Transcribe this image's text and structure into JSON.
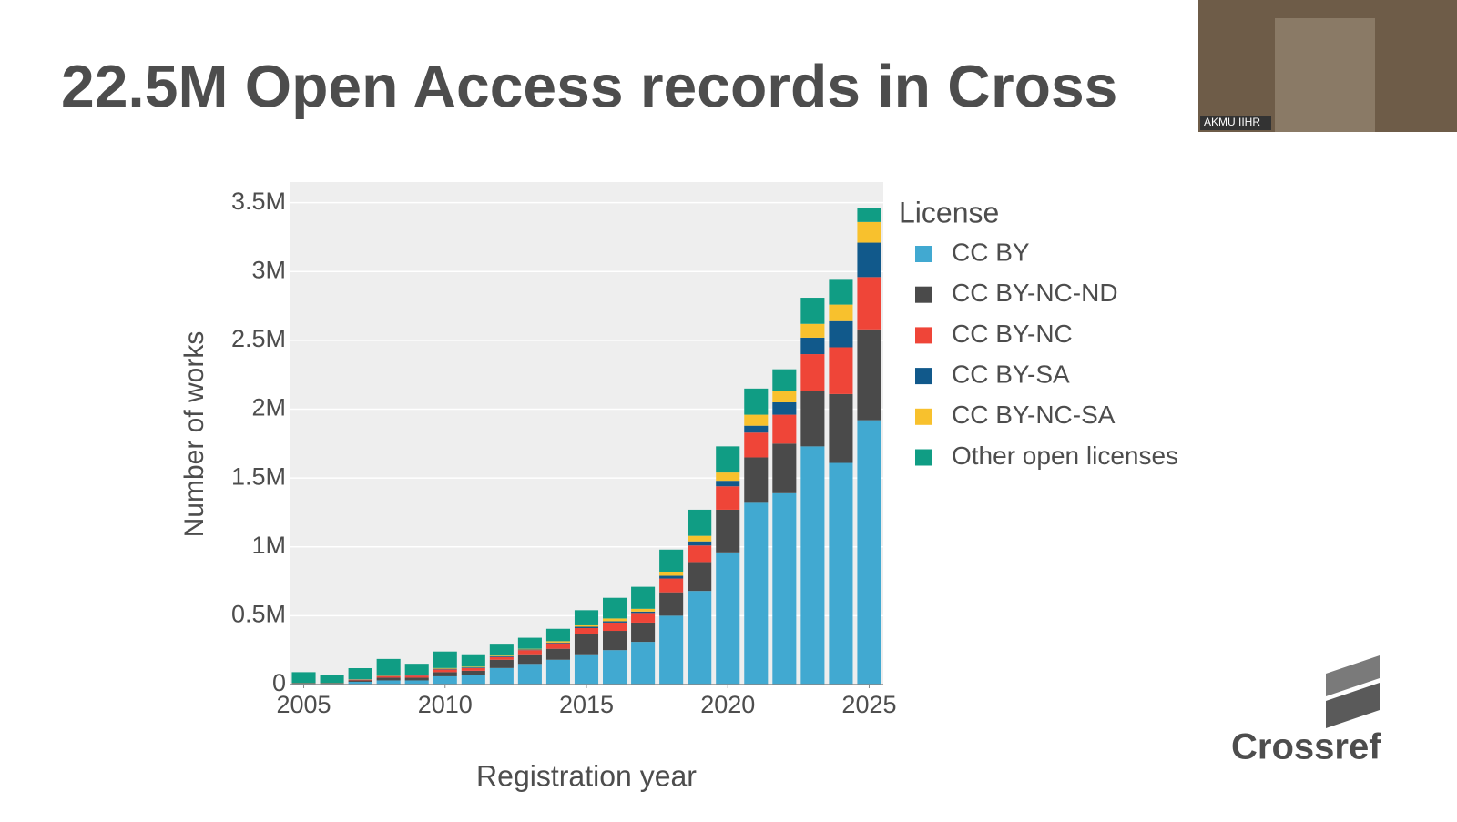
{
  "title": "22.5M Open Access records in Cross",
  "video_label": "AKMU IIHR",
  "logo": "Crossref",
  "chart_data": {
    "type": "stacked-bar",
    "x_label": "Registration year",
    "y_label": "Number of works",
    "legend_title": "License",
    "x": [
      2005,
      2006,
      2007,
      2008,
      2009,
      2010,
      2011,
      2012,
      2013,
      2014,
      2015,
      2016,
      2017,
      2018,
      2019,
      2020,
      2021,
      2022,
      2023,
      2024,
      2025
    ],
    "xlim": [
      2004.5,
      2025.5
    ],
    "xticks": [
      2005,
      2010,
      2015,
      2020,
      2025
    ],
    "ylim": [
      0,
      3.65
    ],
    "yticks": [
      0,
      {
        "value": 0.5,
        "label": "0.5M"
      },
      {
        "value": 1,
        "label": "1M"
      },
      {
        "value": 1.5,
        "label": "1.5M"
      },
      {
        "value": 2,
        "label": "2M"
      },
      {
        "value": 2.5,
        "label": "2.5M"
      },
      {
        "value": 3,
        "label": "3M"
      },
      {
        "value": 3.5,
        "label": "3.5M"
      }
    ],
    "grid": true,
    "series": [
      {
        "name": "CC BY",
        "color": "#41a9d1",
        "values": [
          0.005,
          0.005,
          0.02,
          0.03,
          0.03,
          0.06,
          0.07,
          0.12,
          0.15,
          0.18,
          0.22,
          0.25,
          0.31,
          0.5,
          0.68,
          0.96,
          1.32,
          1.39,
          1.73,
          1.61,
          1.92
        ]
      },
      {
        "name": "CC BY-NC-ND",
        "color": "#4a4a4a",
        "values": [
          0.003,
          0.003,
          0.01,
          0.02,
          0.02,
          0.03,
          0.03,
          0.06,
          0.07,
          0.08,
          0.15,
          0.14,
          0.14,
          0.17,
          0.21,
          0.31,
          0.33,
          0.36,
          0.4,
          0.5,
          0.66
        ]
      },
      {
        "name": "CC BY-NC",
        "color": "#ef4538",
        "values": [
          0.002,
          0.002,
          0.005,
          0.01,
          0.015,
          0.02,
          0.02,
          0.02,
          0.03,
          0.04,
          0.04,
          0.06,
          0.07,
          0.1,
          0.12,
          0.17,
          0.18,
          0.21,
          0.27,
          0.34,
          0.38
        ]
      },
      {
        "name": "CC BY-SA",
        "color": "#11598b",
        "values": [
          0,
          0,
          0.002,
          0.003,
          0.003,
          0.005,
          0.005,
          0.005,
          0.005,
          0.005,
          0.01,
          0.01,
          0.01,
          0.02,
          0.03,
          0.04,
          0.05,
          0.09,
          0.12,
          0.19,
          0.25
        ]
      },
      {
        "name": "CC BY-NC-SA",
        "color": "#f8c12d",
        "values": [
          0,
          0,
          0.002,
          0.003,
          0.003,
          0.005,
          0.005,
          0.005,
          0.005,
          0.01,
          0.01,
          0.02,
          0.02,
          0.03,
          0.04,
          0.06,
          0.08,
          0.08,
          0.1,
          0.12,
          0.15
        ]
      },
      {
        "name": "Other open licenses",
        "color": "#109d84",
        "values": [
          0.08,
          0.06,
          0.08,
          0.12,
          0.08,
          0.12,
          0.09,
          0.08,
          0.08,
          0.09,
          0.11,
          0.15,
          0.16,
          0.16,
          0.19,
          0.19,
          0.19,
          0.16,
          0.19,
          0.18,
          0.1
        ]
      }
    ]
  }
}
